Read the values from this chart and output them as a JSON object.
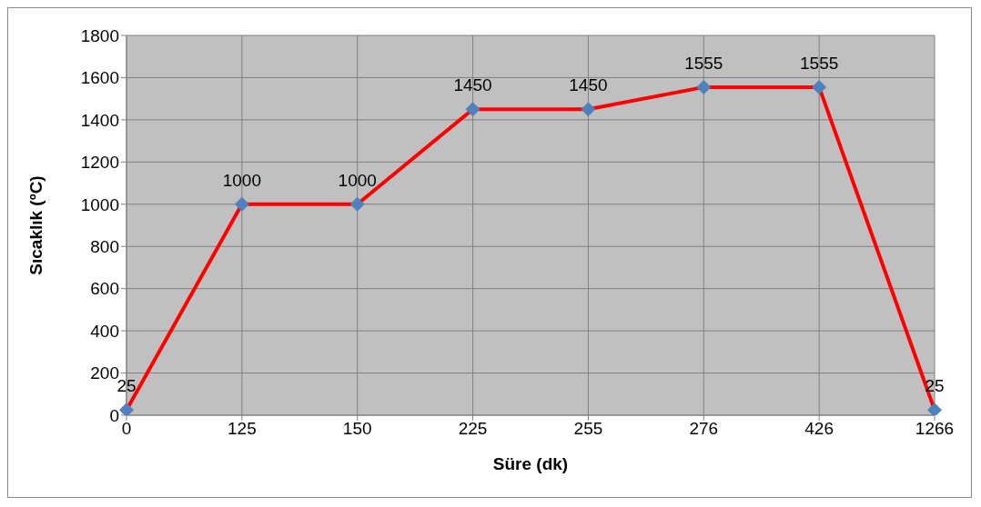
{
  "chart_data": {
    "type": "line",
    "xlabel": "Süre (dk)",
    "ylabel": "Sıcaklık (ºC)",
    "categories": [
      "0",
      "125",
      "150",
      "225",
      "255",
      "276",
      "426",
      "1266"
    ],
    "series": [
      {
        "color": "#ff0000",
        "colors": [
          "#4f81bd",
          "#4f81bd",
          "#4f81bd",
          "#4f81bd",
          "#4f81bd",
          "#4f81bd",
          "#4f81bd",
          "#4f81bd"
        ],
        "values": [
          25,
          1000,
          1000,
          1450,
          1450,
          1555,
          1555,
          25
        ]
      }
    ],
    "ylim": [
      0,
      1800
    ],
    "yticks": [
      0,
      200,
      400,
      600,
      800,
      1000,
      1200,
      1400,
      1600,
      1800
    ],
    "grid": true,
    "marker": "diamond",
    "line_style": "solid",
    "data_labels": true
  }
}
